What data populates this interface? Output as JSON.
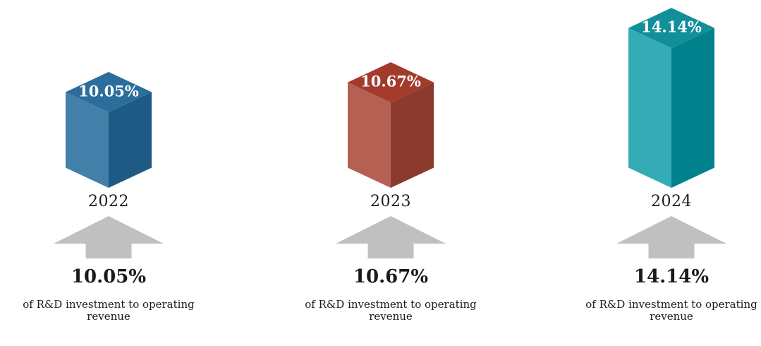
{
  "chart_data": {
    "type": "bar",
    "categories": [
      "2022",
      "2023",
      "2024"
    ],
    "values": [
      10.05,
      10.67,
      14.14
    ],
    "unit": "%",
    "legend": "none",
    "axes": "none",
    "background": "#FFFFFF",
    "arrow_color": "#C0C0C0",
    "text_color": "#1A1A1A",
    "bar_label_text_color": "#FFFFFF",
    "bars": [
      {
        "year": "2022",
        "value": 10.05,
        "value_label": "10.05%",
        "description": "of R&D investment to operating revenue",
        "colors": {
          "top": "#2B6D9B",
          "left": "#4280A9",
          "right": "#1E5A83"
        }
      },
      {
        "year": "2023",
        "value": 10.67,
        "value_label": "10.67%",
        "description": "of R&D investment to operating revenue",
        "colors": {
          "top": "#A33B2D",
          "left": "#B66053",
          "right": "#8C392E"
        }
      },
      {
        "year": "2024",
        "value": 14.14,
        "value_label": "14.14%",
        "description": "of R&D investment to operating revenue",
        "colors": {
          "top": "#11909A",
          "left": "#35ACB5",
          "right": "#00828D"
        }
      }
    ]
  }
}
